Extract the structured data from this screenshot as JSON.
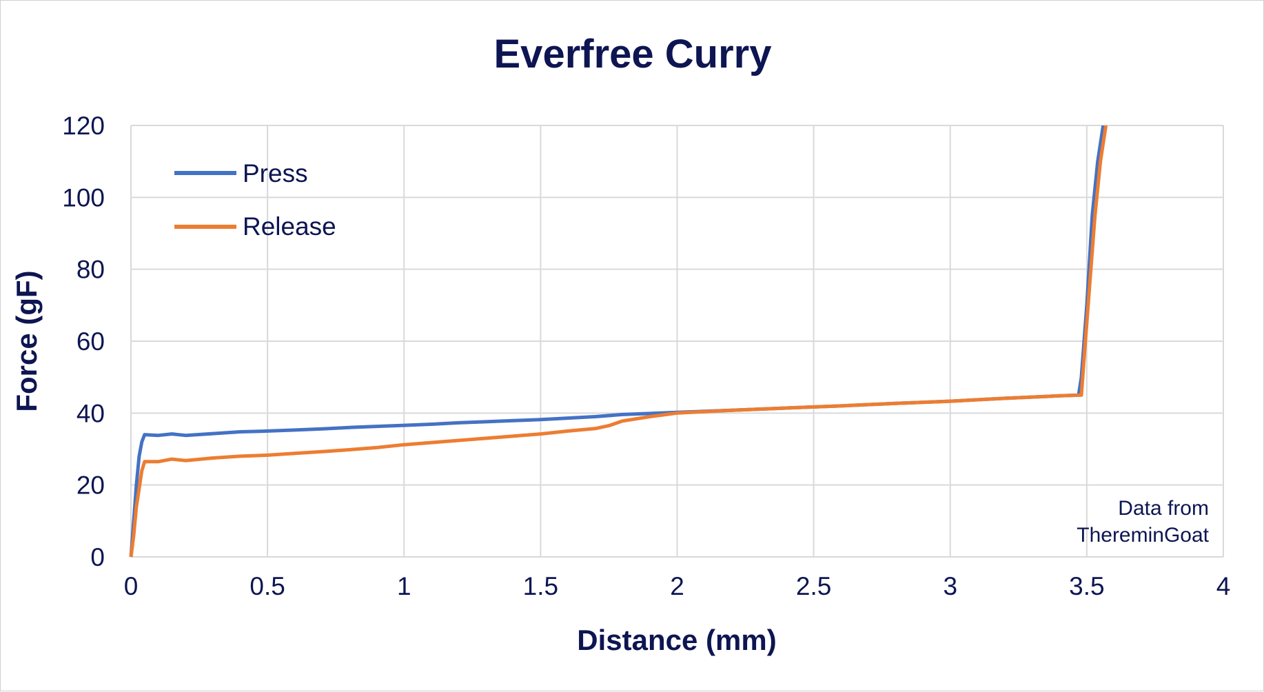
{
  "chart_data": {
    "type": "line",
    "title": "Everfree Curry",
    "xlabel": "Distance (mm)",
    "ylabel": "Force (gF)",
    "xlim": [
      0,
      4
    ],
    "ylim": [
      0,
      120
    ],
    "x_ticks": [
      "0",
      "0.5",
      "1",
      "1.5",
      "2",
      "2.5",
      "3",
      "3.5",
      "4"
    ],
    "y_ticks": [
      "0",
      "20",
      "40",
      "60",
      "80",
      "100",
      "120"
    ],
    "x_tick_values": [
      0,
      0.5,
      1,
      1.5,
      2,
      2.5,
      3,
      3.5,
      4
    ],
    "y_tick_values": [
      0,
      20,
      40,
      60,
      80,
      100,
      120
    ],
    "grid": true,
    "legend_position": "top-left",
    "annotation": [
      "Data from",
      "ThereminGoat"
    ],
    "series": [
      {
        "name": "Press",
        "color": "#4472c4",
        "points": [
          [
            0,
            0
          ],
          [
            0.01,
            10
          ],
          [
            0.02,
            20
          ],
          [
            0.03,
            28
          ],
          [
            0.04,
            32
          ],
          [
            0.05,
            34
          ],
          [
            0.1,
            33.8
          ],
          [
            0.15,
            34.2
          ],
          [
            0.2,
            33.8
          ],
          [
            0.3,
            34.3
          ],
          [
            0.4,
            34.8
          ],
          [
            0.5,
            35
          ],
          [
            0.6,
            35.3
          ],
          [
            0.7,
            35.6
          ],
          [
            0.8,
            36
          ],
          [
            0.9,
            36.3
          ],
          [
            1.0,
            36.6
          ],
          [
            1.1,
            36.9
          ],
          [
            1.2,
            37.3
          ],
          [
            1.3,
            37.6
          ],
          [
            1.4,
            37.9
          ],
          [
            1.5,
            38.2
          ],
          [
            1.6,
            38.6
          ],
          [
            1.7,
            39
          ],
          [
            1.8,
            39.6
          ],
          [
            1.9,
            39.9
          ],
          [
            2.0,
            40.2
          ],
          [
            2.2,
            40.8
          ],
          [
            2.4,
            41.4
          ],
          [
            2.6,
            42
          ],
          [
            2.8,
            42.7
          ],
          [
            3.0,
            43.3
          ],
          [
            3.2,
            44.1
          ],
          [
            3.4,
            44.8
          ],
          [
            3.47,
            45
          ],
          [
            3.48,
            50
          ],
          [
            3.5,
            70
          ],
          [
            3.52,
            95
          ],
          [
            3.54,
            110
          ],
          [
            3.56,
            120
          ]
        ]
      },
      {
        "name": "Release",
        "color": "#ed7d31",
        "points": [
          [
            0,
            0
          ],
          [
            0.01,
            6
          ],
          [
            0.02,
            14
          ],
          [
            0.03,
            19
          ],
          [
            0.04,
            24
          ],
          [
            0.05,
            26.5
          ],
          [
            0.1,
            26.5
          ],
          [
            0.15,
            27.2
          ],
          [
            0.2,
            26.8
          ],
          [
            0.3,
            27.5
          ],
          [
            0.4,
            28
          ],
          [
            0.5,
            28.3
          ],
          [
            0.6,
            28.8
          ],
          [
            0.7,
            29.3
          ],
          [
            0.8,
            29.8
          ],
          [
            0.9,
            30.4
          ],
          [
            1.0,
            31.2
          ],
          [
            1.1,
            31.8
          ],
          [
            1.2,
            32.4
          ],
          [
            1.3,
            33
          ],
          [
            1.4,
            33.6
          ],
          [
            1.5,
            34.2
          ],
          [
            1.6,
            35
          ],
          [
            1.7,
            35.7
          ],
          [
            1.75,
            36.5
          ],
          [
            1.8,
            37.8
          ],
          [
            1.9,
            39
          ],
          [
            2.0,
            40
          ],
          [
            2.2,
            40.8
          ],
          [
            2.4,
            41.4
          ],
          [
            2.6,
            42
          ],
          [
            2.8,
            42.7
          ],
          [
            3.0,
            43.3
          ],
          [
            3.2,
            44.1
          ],
          [
            3.4,
            44.8
          ],
          [
            3.48,
            45
          ],
          [
            3.49,
            55
          ],
          [
            3.51,
            75
          ],
          [
            3.53,
            95
          ],
          [
            3.55,
            110
          ],
          [
            3.57,
            120
          ]
        ]
      }
    ]
  }
}
